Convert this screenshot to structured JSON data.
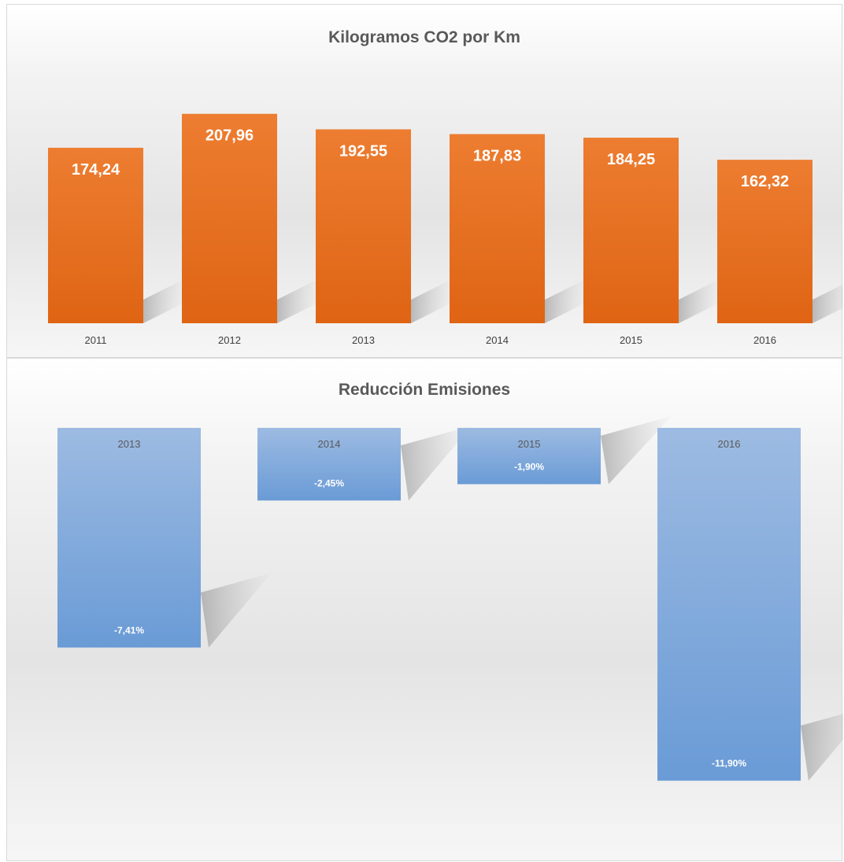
{
  "colors": {
    "orange_top": "#ed7d31",
    "orange_bottom": "#df6414",
    "blue_top": "#9dbbe2",
    "blue_bottom": "#6a9bd6"
  },
  "chart_data": [
    {
      "type": "bar",
      "title": "Kilogramos CO2 por Km",
      "categories": [
        "2011",
        "2012",
        "2013",
        "2014",
        "2015",
        "2016"
      ],
      "values": [
        174.24,
        207.96,
        192.55,
        187.83,
        184.25,
        162.32
      ],
      "data_labels": [
        "174,24",
        "207,96",
        "192,55",
        "187,83",
        "184,25",
        "162,32"
      ],
      "xlabel": "",
      "ylabel": "",
      "grid": false
    },
    {
      "type": "bar",
      "title": "Reducción Emisiones",
      "categories": [
        "2013",
        "2014",
        "2015",
        "2016"
      ],
      "values": [
        -7.41,
        -2.45,
        -1.9,
        -11.9
      ],
      "data_labels": [
        "-7,41%",
        "-2,45%",
        "-1,90%",
        "-11,90%"
      ],
      "xlabel": "",
      "ylabel": "",
      "grid": false
    }
  ]
}
